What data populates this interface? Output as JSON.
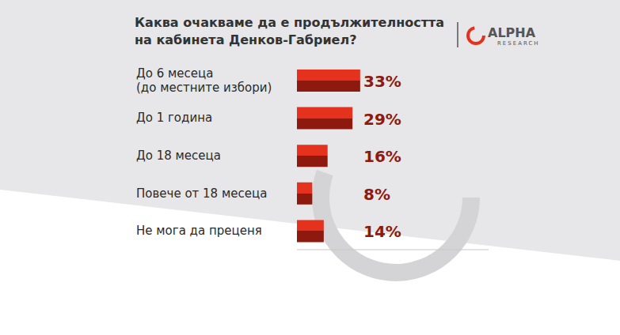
{
  "chart_data": {
    "type": "bar",
    "title": "Каква очакваме да е продължителността на кабинета Денков-Габриел?",
    "logo": {
      "name": "ALPHA",
      "subtitle": "RESEARCH"
    },
    "orientation": "horizontal",
    "categories": [
      "До 6 месеца (до местните избори)",
      "До 1 година",
      "До 18 месеца",
      "Повече от 18 месеца",
      "Не мога да преценя"
    ],
    "values": [
      33,
      29,
      16,
      8,
      14
    ],
    "value_labels": [
      "33%",
      "29%",
      "16%",
      "8%",
      "14%"
    ],
    "data_labels": true,
    "color": "#e5321e",
    "xlim": [
      0,
      100
    ],
    "grid": false,
    "tick_labels": "y"
  }
}
